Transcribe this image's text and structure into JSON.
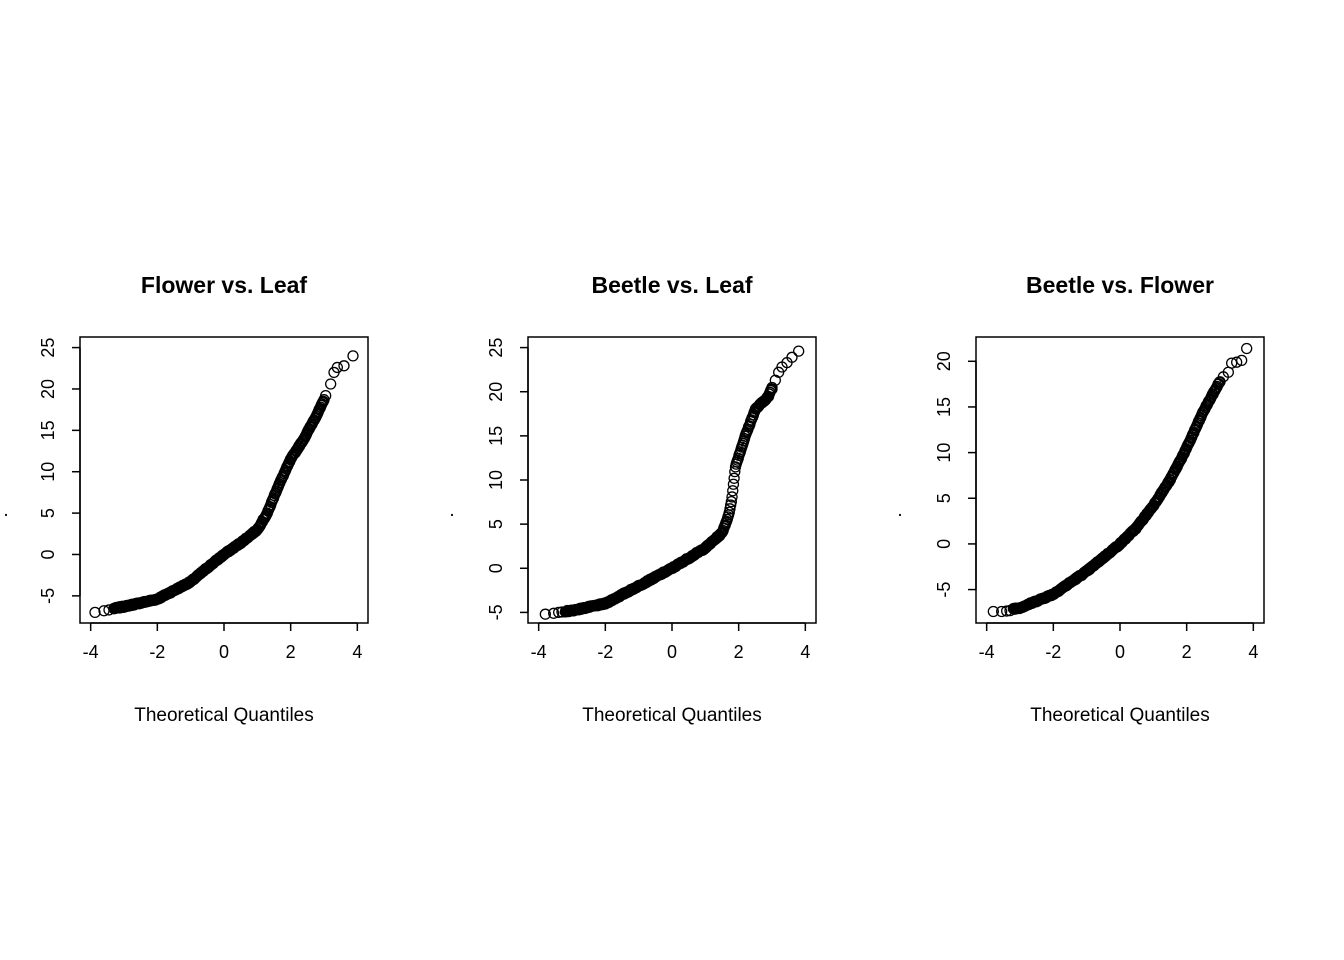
{
  "chart_data": [
    {
      "type": "scatter",
      "subtype": "qq-plot",
      "title": "Flower vs. Leaf",
      "xlabel": "Theoretical Quantiles",
      "ylabel": ".",
      "xlim": [
        -4,
        4
      ],
      "ylim": [
        -7,
        25
      ],
      "xticks": [
        "-4",
        "-2",
        "0",
        "2",
        "4"
      ],
      "yticks": [
        "-5",
        "0",
        "5",
        "10",
        "15",
        "20",
        "25"
      ],
      "marker": "open-circle",
      "curve": [
        [
          -3.9,
          -7.0
        ],
        [
          -3.0,
          -6.3
        ],
        [
          -2.0,
          -5.4
        ],
        [
          -1.0,
          -3.3
        ],
        [
          -0.5,
          -1.6
        ],
        [
          0,
          0.0
        ],
        [
          0.5,
          1.4
        ],
        [
          1.0,
          3.0
        ],
        [
          1.3,
          5.0
        ],
        [
          1.6,
          8.0
        ],
        [
          2.0,
          11.5
        ],
        [
          2.4,
          14.0
        ],
        [
          2.8,
          17.0
        ],
        [
          3.1,
          19.5
        ],
        [
          3.3,
          22.0
        ]
      ],
      "extreme_points": {
        "low": [
          [
            -3.87,
            -7.0
          ],
          [
            -3.6,
            -6.8
          ],
          [
            -3.45,
            -6.7
          ],
          [
            -3.3,
            -6.55
          ]
        ],
        "high": [
          [
            3.05,
            19.2
          ],
          [
            3.2,
            20.6
          ],
          [
            3.3,
            22.0
          ],
          [
            3.4,
            22.6
          ],
          [
            3.6,
            22.8
          ],
          [
            3.87,
            24.0
          ]
        ]
      }
    },
    {
      "type": "scatter",
      "subtype": "qq-plot",
      "title": "Beetle vs. Leaf",
      "xlabel": "Theoretical Quantiles",
      "ylabel": ".",
      "xlim": [
        -4,
        4
      ],
      "ylim": [
        -5,
        25
      ],
      "xticks": [
        "-4",
        "-2",
        "0",
        "2",
        "4"
      ],
      "yticks": [
        "-5",
        "0",
        "5",
        "10",
        "15",
        "20",
        "25"
      ],
      "marker": "open-circle",
      "curve": [
        [
          -3.8,
          -5.1
        ],
        [
          -3.0,
          -4.8
        ],
        [
          -2.0,
          -4.0
        ],
        [
          -1.0,
          -2.0
        ],
        [
          0,
          0.0
        ],
        [
          1.0,
          2.3
        ],
        [
          1.5,
          4.0
        ],
        [
          1.7,
          6.0
        ],
        [
          1.8,
          8.0
        ],
        [
          1.9,
          11.5
        ],
        [
          2.2,
          15.0
        ],
        [
          2.5,
          18.0
        ],
        [
          2.9,
          19.5
        ],
        [
          3.1,
          21.5
        ],
        [
          3.3,
          22.8
        ]
      ],
      "extreme_points": {
        "low": [
          [
            -3.8,
            -5.2
          ],
          [
            -3.55,
            -5.1
          ],
          [
            -3.4,
            -5.0
          ],
          [
            -3.3,
            -4.95
          ]
        ],
        "high": [
          [
            3.0,
            20.3
          ],
          [
            3.1,
            21.3
          ],
          [
            3.2,
            22.2
          ],
          [
            3.3,
            22.8
          ],
          [
            3.45,
            23.3
          ],
          [
            3.6,
            23.9
          ],
          [
            3.8,
            24.6
          ]
        ]
      }
    },
    {
      "type": "scatter",
      "subtype": "qq-plot",
      "title": "Beetle vs. Flower",
      "xlabel": "Theoretical Quantiles",
      "ylabel": ".",
      "xlim": [
        -4,
        4
      ],
      "ylim": [
        -7.5,
        21.5
      ],
      "xticks": [
        "-4",
        "-2",
        "0",
        "2",
        "4"
      ],
      "yticks": [
        "-5",
        "0",
        "5",
        "10",
        "15",
        "20"
      ],
      "marker": "open-circle",
      "curve": [
        [
          -3.8,
          -7.4
        ],
        [
          -3.0,
          -7.0
        ],
        [
          -2.0,
          -5.5
        ],
        [
          -1.0,
          -3.0
        ],
        [
          0,
          0.0
        ],
        [
          0.5,
          1.8
        ],
        [
          1.0,
          4.2
        ],
        [
          1.5,
          7.0
        ],
        [
          2.0,
          10.5
        ],
        [
          2.5,
          14.5
        ],
        [
          2.8,
          16.5
        ],
        [
          3.1,
          18.5
        ],
        [
          3.3,
          19.8
        ]
      ],
      "extreme_points": {
        "low": [
          [
            -3.8,
            -7.4
          ],
          [
            -3.55,
            -7.4
          ],
          [
            -3.4,
            -7.35
          ],
          [
            -3.3,
            -7.3
          ]
        ],
        "high": [
          [
            3.1,
            18.3
          ],
          [
            3.25,
            18.8
          ],
          [
            3.35,
            19.8
          ],
          [
            3.5,
            19.9
          ],
          [
            3.65,
            20.1
          ],
          [
            3.8,
            21.4
          ]
        ]
      }
    }
  ]
}
